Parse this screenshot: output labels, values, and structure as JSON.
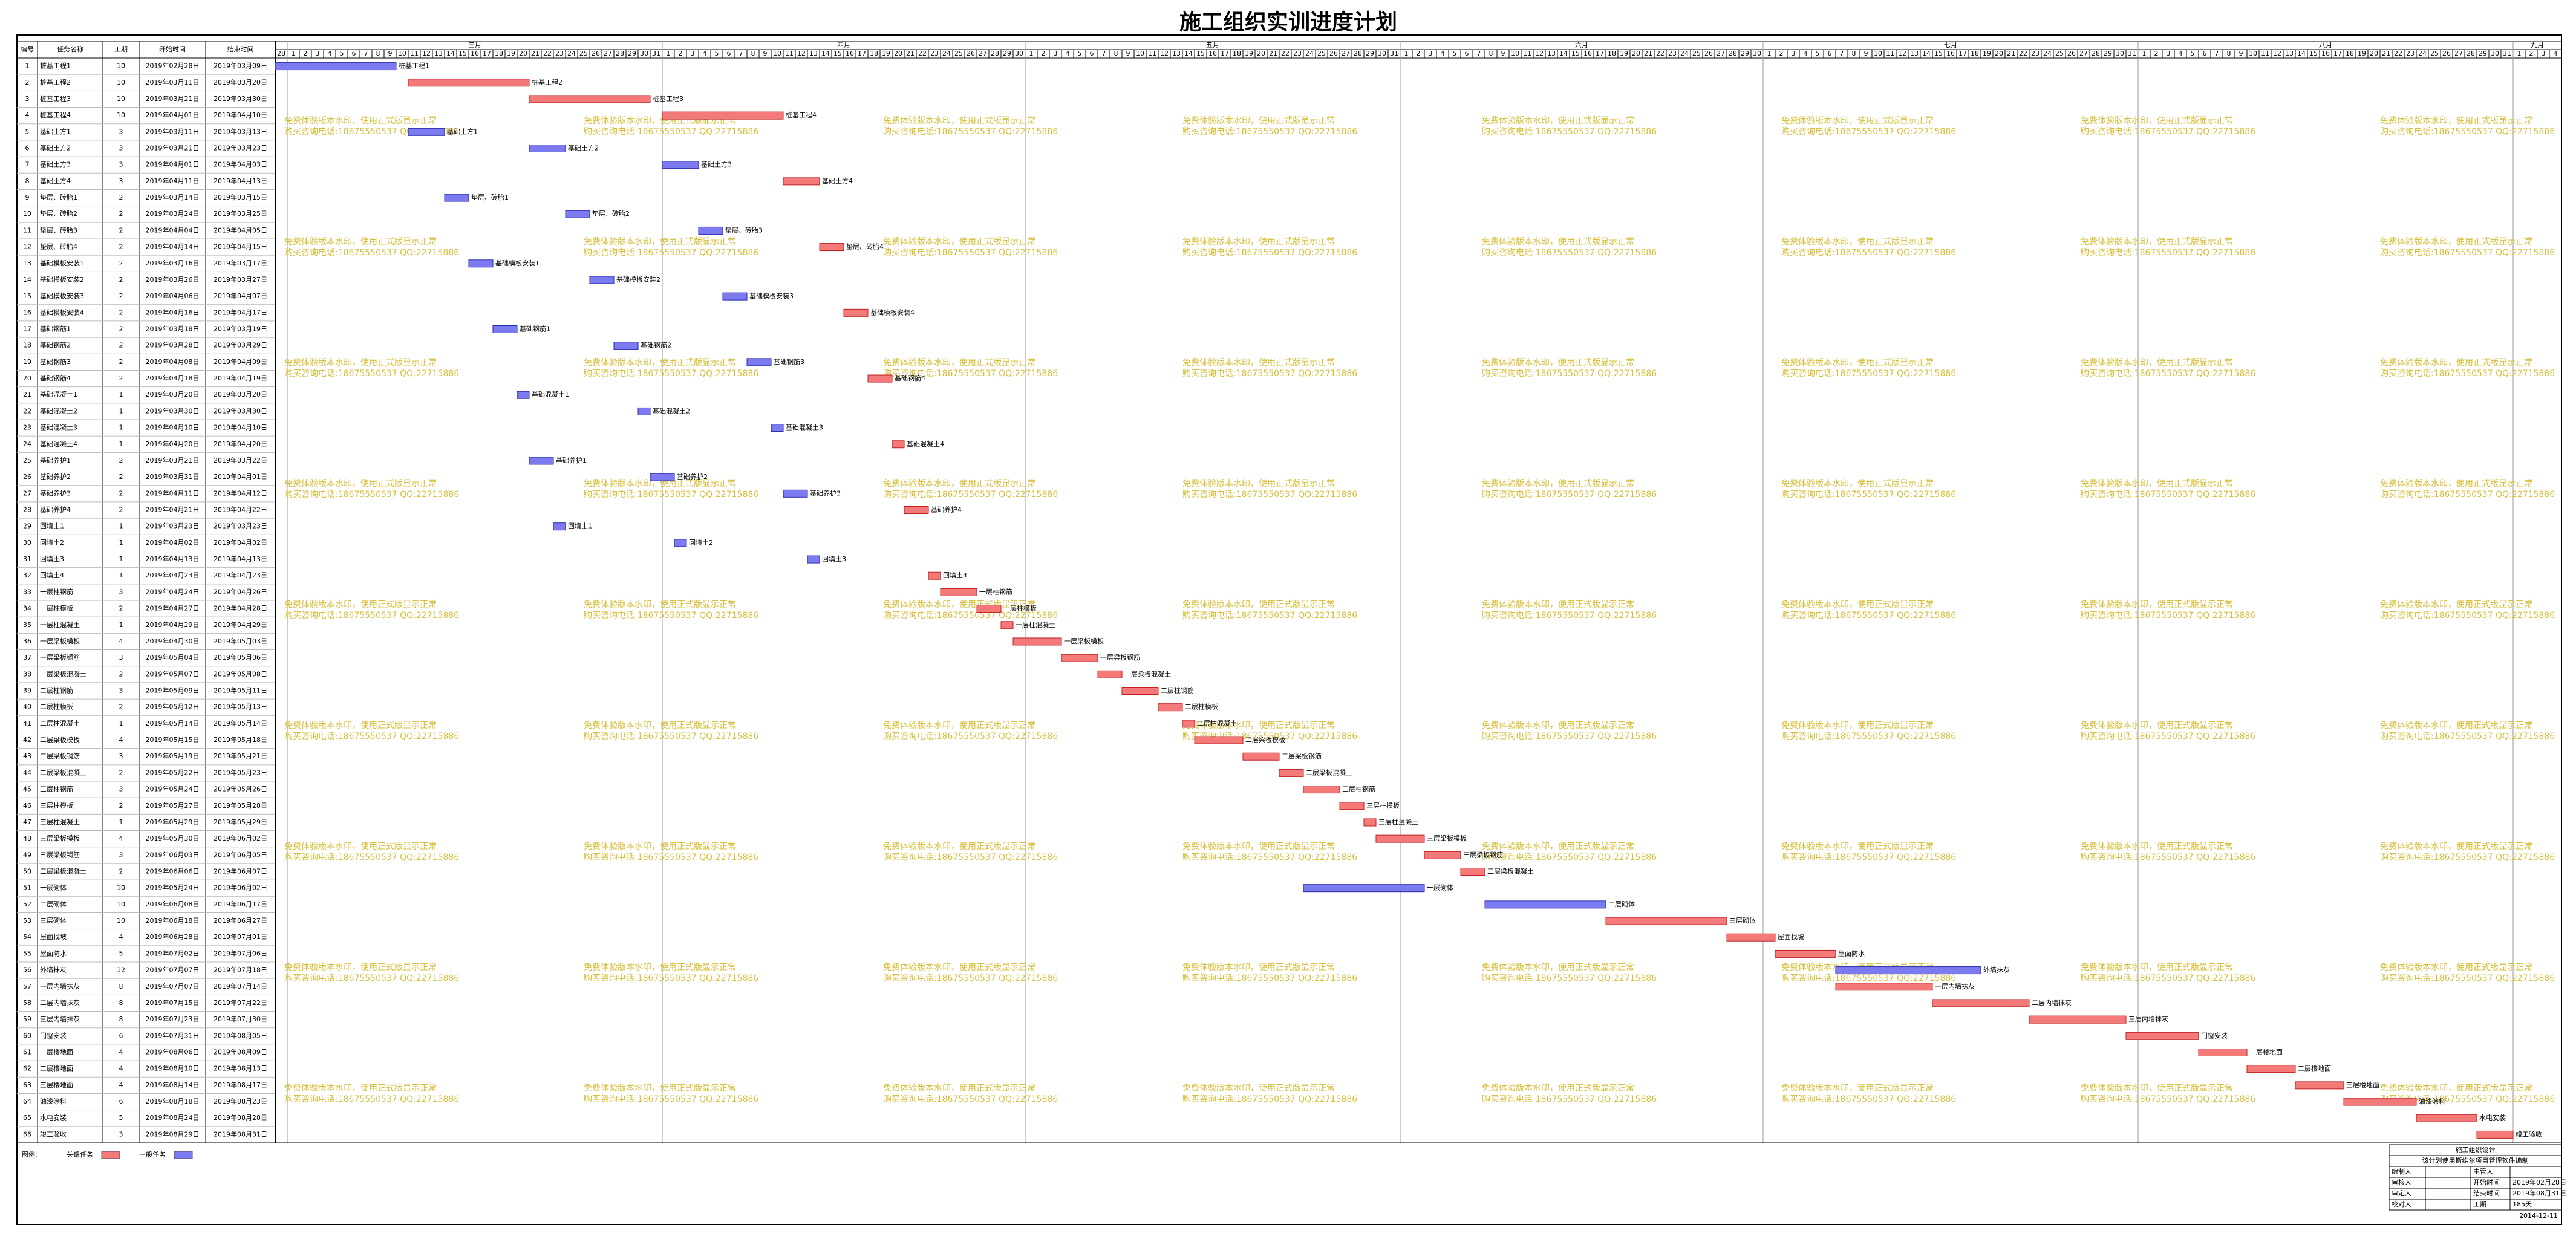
{
  "title": "施工组织实训进度计划",
  "table": {
    "columns": [
      "编号",
      "任务名称",
      "工期",
      "开始时间",
      "结束时间"
    ],
    "rows": [
      [
        1,
        "桩基工程1",
        10,
        "2019年02月28日",
        "2019年03月09日",
        false
      ],
      [
        2,
        "桩基工程2",
        10,
        "2019年03月11日",
        "2019年03月20日",
        true
      ],
      [
        3,
        "桩基工程3",
        10,
        "2019年03月21日",
        "2019年03月30日",
        true
      ],
      [
        4,
        "桩基工程4",
        10,
        "2019年04月01日",
        "2019年04月10日",
        true
      ],
      [
        5,
        "基础土方1",
        3,
        "2019年03月11日",
        "2019年03月13日",
        false
      ],
      [
        6,
        "基础土方2",
        3,
        "2019年03月21日",
        "2019年03月23日",
        false
      ],
      [
        7,
        "基础土方3",
        3,
        "2019年04月01日",
        "2019年04月03日",
        false
      ],
      [
        8,
        "基础土方4",
        3,
        "2019年04月11日",
        "2019年04月13日",
        true
      ],
      [
        9,
        "垫层、砖胎1",
        2,
        "2019年03月14日",
        "2019年03月15日",
        false
      ],
      [
        10,
        "垫层、砖胎2",
        2,
        "2019年03月24日",
        "2019年03月25日",
        false
      ],
      [
        11,
        "垫层、砖胎3",
        2,
        "2019年04月04日",
        "2019年04月05日",
        false
      ],
      [
        12,
        "垫层、砖胎4",
        2,
        "2019年04月14日",
        "2019年04月15日",
        true
      ],
      [
        13,
        "基础模板安装1",
        2,
        "2019年03月16日",
        "2019年03月17日",
        false
      ],
      [
        14,
        "基础模板安装2",
        2,
        "2019年03月26日",
        "2019年03月27日",
        false
      ],
      [
        15,
        "基础模板安装3",
        2,
        "2019年04月06日",
        "2019年04月07日",
        false
      ],
      [
        16,
        "基础模板安装4",
        2,
        "2019年04月16日",
        "2019年04月17日",
        true
      ],
      [
        17,
        "基础钢筋1",
        2,
        "2019年03月18日",
        "2019年03月19日",
        false
      ],
      [
        18,
        "基础钢筋2",
        2,
        "2019年03月28日",
        "2019年03月29日",
        false
      ],
      [
        19,
        "基础钢筋3",
        2,
        "2019年04月08日",
        "2019年04月09日",
        false
      ],
      [
        20,
        "基础钢筋4",
        2,
        "2019年04月18日",
        "2019年04月19日",
        true
      ],
      [
        21,
        "基础混凝土1",
        1,
        "2019年03月20日",
        "2019年03月20日",
        false
      ],
      [
        22,
        "基础混凝土2",
        1,
        "2019年03月30日",
        "2019年03月30日",
        false
      ],
      [
        23,
        "基础混凝土3",
        1,
        "2019年04月10日",
        "2019年04月10日",
        false
      ],
      [
        24,
        "基础混凝土4",
        1,
        "2019年04月20日",
        "2019年04月20日",
        true
      ],
      [
        25,
        "基础养护1",
        2,
        "2019年03月21日",
        "2019年03月22日",
        false
      ],
      [
        26,
        "基础养护2",
        2,
        "2019年03月31日",
        "2019年04月01日",
        false
      ],
      [
        27,
        "基础养护3",
        2,
        "2019年04月11日",
        "2019年04月12日",
        false
      ],
      [
        28,
        "基础养护4",
        2,
        "2019年04月21日",
        "2019年04月22日",
        true
      ],
      [
        29,
        "回填土1",
        1,
        "2019年03月23日",
        "2019年03月23日",
        false
      ],
      [
        30,
        "回填土2",
        1,
        "2019年04月02日",
        "2019年04月02日",
        false
      ],
      [
        31,
        "回填土3",
        1,
        "2019年04月13日",
        "2019年04月13日",
        false
      ],
      [
        32,
        "回填土4",
        1,
        "2019年04月23日",
        "2019年04月23日",
        true
      ],
      [
        33,
        "一层柱钢筋",
        3,
        "2019年04月24日",
        "2019年04月26日",
        true
      ],
      [
        34,
        "一层柱模板",
        2,
        "2019年04月27日",
        "2019年04月28日",
        true
      ],
      [
        35,
        "一层柱混凝土",
        1,
        "2019年04月29日",
        "2019年04月29日",
        true
      ],
      [
        36,
        "一层梁板模板",
        4,
        "2019年04月30日",
        "2019年05月03日",
        true
      ],
      [
        37,
        "一层梁板钢筋",
        3,
        "2019年05月04日",
        "2019年05月06日",
        true
      ],
      [
        38,
        "一层梁板混凝土",
        2,
        "2019年05月07日",
        "2019年05月08日",
        true
      ],
      [
        39,
        "二层柱钢筋",
        3,
        "2019年05月09日",
        "2019年05月11日",
        true
      ],
      [
        40,
        "二层柱模板",
        2,
        "2019年05月12日",
        "2019年05月13日",
        true
      ],
      [
        41,
        "二层柱混凝土",
        1,
        "2019年05月14日",
        "2019年05月14日",
        true
      ],
      [
        42,
        "二层梁板模板",
        4,
        "2019年05月15日",
        "2019年05月18日",
        true
      ],
      [
        43,
        "二层梁板钢筋",
        3,
        "2019年05月19日",
        "2019年05月21日",
        true
      ],
      [
        44,
        "二层梁板混凝土",
        2,
        "2019年05月22日",
        "2019年05月23日",
        true
      ],
      [
        45,
        "三层柱钢筋",
        3,
        "2019年05月24日",
        "2019年05月26日",
        true
      ],
      [
        46,
        "三层柱模板",
        2,
        "2019年05月27日",
        "2019年05月28日",
        true
      ],
      [
        47,
        "三层柱混凝土",
        1,
        "2019年05月29日",
        "2019年05月29日",
        true
      ],
      [
        48,
        "三层梁板模板",
        4,
        "2019年05月30日",
        "2019年06月02日",
        true
      ],
      [
        49,
        "三层梁板钢筋",
        3,
        "2019年06月03日",
        "2019年06月05日",
        true
      ],
      [
        50,
        "三层梁板混凝土",
        2,
        "2019年06月06日",
        "2019年06月07日",
        true
      ],
      [
        51,
        "一层砌体",
        10,
        "2019年05月24日",
        "2019年06月02日",
        false
      ],
      [
        52,
        "二层砌体",
        10,
        "2019年06月08日",
        "2019年06月17日",
        false
      ],
      [
        53,
        "三层砌体",
        10,
        "2019年06月18日",
        "2019年06月27日",
        true
      ],
      [
        54,
        "屋面找坡",
        4,
        "2019年06月28日",
        "2019年07月01日",
        true
      ],
      [
        55,
        "屋面防水",
        5,
        "2019年07月02日",
        "2019年07月06日",
        true
      ],
      [
        56,
        "外墙抹灰",
        12,
        "2019年07月07日",
        "2019年07月18日",
        false
      ],
      [
        57,
        "一层内墙抹灰",
        8,
        "2019年07月07日",
        "2019年07月14日",
        true
      ],
      [
        58,
        "二层内墙抹灰",
        8,
        "2019年07月15日",
        "2019年07月22日",
        true
      ],
      [
        59,
        "三层内墙抹灰",
        8,
        "2019年07月23日",
        "2019年07月30日",
        true
      ],
      [
        60,
        "门窗安装",
        6,
        "2019年07月31日",
        "2019年08月05日",
        true
      ],
      [
        61,
        "一层楼地面",
        4,
        "2019年08月06日",
        "2019年08月09日",
        true
      ],
      [
        62,
        "二层楼地面",
        4,
        "2019年08月10日",
        "2019年08月13日",
        true
      ],
      [
        63,
        "三层楼地面",
        4,
        "2019年08月14日",
        "2019年08月17日",
        true
      ],
      [
        64,
        "油漆涂料",
        6,
        "2019年08月18日",
        "2019年08月23日",
        true
      ],
      [
        65,
        "水电安装",
        5,
        "2019年08月24日",
        "2019年08月28日",
        true
      ],
      [
        66,
        "竣工验收",
        3,
        "2019年08月29日",
        "2019年08月31日",
        true
      ]
    ]
  },
  "timeline": {
    "months": [
      {
        "label": null,
        "days": [
          28
        ]
      },
      {
        "label": "三月",
        "days": [
          1,
          2,
          3,
          4,
          5,
          6,
          7,
          8,
          9,
          10,
          11,
          12,
          13,
          14,
          15,
          16,
          17,
          18,
          19,
          20,
          21,
          22,
          23,
          24,
          25,
          26,
          27,
          28,
          29,
          30,
          31
        ]
      },
      {
        "label": "四月",
        "days": [
          1,
          2,
          3,
          4,
          5,
          6,
          7,
          8,
          9,
          10,
          11,
          12,
          13,
          14,
          15,
          16,
          17,
          18,
          19,
          20,
          21,
          22,
          23,
          24,
          25,
          26,
          27,
          28,
          29,
          30
        ]
      },
      {
        "label": "五月",
        "days": [
          1,
          2,
          3,
          4,
          5,
          6,
          7,
          8,
          9,
          10,
          11,
          12,
          13,
          14,
          15,
          16,
          17,
          18,
          19,
          20,
          21,
          22,
          23,
          24,
          25,
          26,
          27,
          28,
          29,
          30,
          31
        ]
      },
      {
        "label": "六月",
        "days": [
          1,
          2,
          3,
          4,
          5,
          6,
          7,
          8,
          9,
          10,
          11,
          12,
          13,
          14,
          15,
          16,
          17,
          18,
          19,
          20,
          21,
          22,
          23,
          24,
          25,
          26,
          27,
          28,
          29,
          30
        ]
      },
      {
        "label": "七月",
        "days": [
          1,
          2,
          3,
          4,
          5,
          6,
          7,
          8,
          9,
          10,
          11,
          12,
          13,
          14,
          15,
          16,
          17,
          18,
          19,
          20,
          21,
          22,
          23,
          24,
          25,
          26,
          27,
          28,
          29,
          30,
          31
        ]
      },
      {
        "label": "八月",
        "days": [
          1,
          2,
          3,
          4,
          5,
          6,
          7,
          8,
          9,
          10,
          11,
          12,
          13,
          14,
          15,
          16,
          17,
          18,
          19,
          20,
          21,
          22,
          23,
          24,
          25,
          26,
          27,
          28,
          29,
          30,
          31
        ]
      },
      {
        "label": "九月",
        "days": [
          1,
          2,
          3,
          4
        ]
      }
    ]
  },
  "legend": {
    "title": "图例:",
    "items": [
      {
        "label": "关键任务",
        "color": "#f47a7a"
      },
      {
        "label": "一般任务",
        "color": "#7b7bef"
      }
    ]
  },
  "watermark": [
    "免费体验版本水印，使用正式版显示正常",
    "购买咨询电话:18675550537 QQ:22715886"
  ],
  "info": {
    "title": "施工组织设计",
    "note": "该计划使用斯维尔项目管理软件编制",
    "rows": [
      [
        "编制人",
        "主管人"
      ],
      [
        "审核人",
        "开始时间",
        "2019年02月28日"
      ],
      [
        "审定人",
        "结束时间",
        "2019年08月31日"
      ],
      [
        "校对人",
        "工期",
        "185天"
      ]
    ],
    "date": "2014-12-11"
  }
}
